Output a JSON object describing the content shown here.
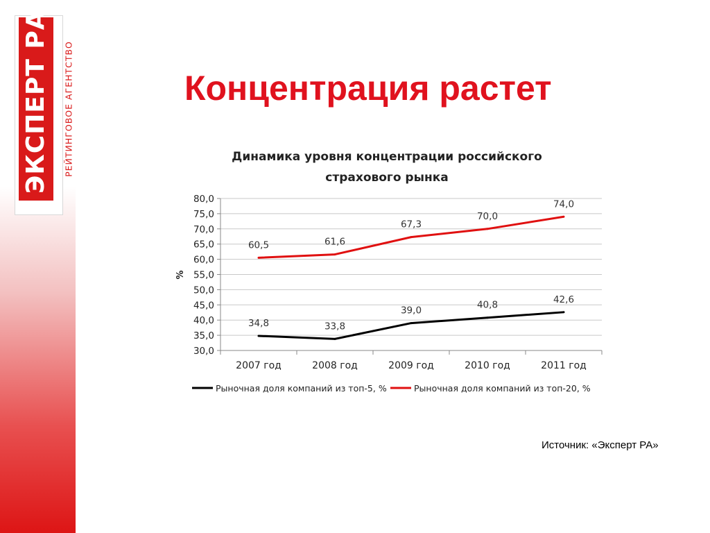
{
  "logo": {
    "main": "ЭКСПЕРТ РА",
    "sub": "РЕЙТИНГОВОЕ АГЕНТСТВО"
  },
  "slide_title": "Концентрация растет",
  "source": "Источник: «Эксперт РА»",
  "chart_data": {
    "type": "line",
    "title_lines": [
      "Динамика уровня концентрации российского",
      "страхового рынка"
    ],
    "ylabel": "%",
    "xlabel": "",
    "categories": [
      "2007 год",
      "2008 год",
      "2009 год",
      "2010 год",
      "2011 год"
    ],
    "ylim": [
      30,
      80
    ],
    "ytick_step": 5,
    "ytick_labels": [
      "30,0",
      "35,0",
      "40,0",
      "45,0",
      "50,0",
      "55,0",
      "60,0",
      "65,0",
      "70,0",
      "75,0",
      "80,0"
    ],
    "grid": true,
    "legend_position": "bottom",
    "series": [
      {
        "name": "Рыночная доля компаний из топ-5, %",
        "color": "#000000",
        "values": [
          34.8,
          33.8,
          39.0,
          40.8,
          42.6
        ],
        "labels": [
          "34,8",
          "33,8",
          "39,0",
          "40,8",
          "42,6"
        ]
      },
      {
        "name": "Рыночная доля компаний из топ-20, %",
        "color": "#e01010",
        "values": [
          60.5,
          61.6,
          67.3,
          70.0,
          74.0
        ],
        "labels": [
          "60,5",
          "61,6",
          "67,3",
          "70,0",
          "74,0"
        ]
      }
    ]
  }
}
